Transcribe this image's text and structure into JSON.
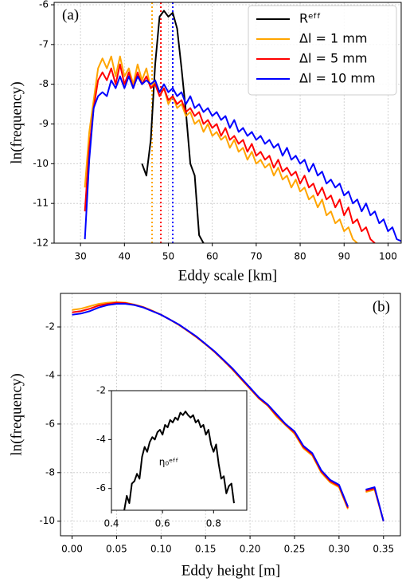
{
  "chart_data": [
    {
      "type": "line",
      "annotations": [
        "(a)"
      ],
      "x_label": "Eddy scale [km]",
      "y_label": "ln(frequency)",
      "xlim": [
        24,
        103
      ],
      "ylim": [
        -12,
        -5.94
      ],
      "xticks": [
        30,
        40,
        50,
        60,
        70,
        80,
        90,
        100
      ],
      "yticks": [
        -12,
        -11,
        -10,
        -9,
        -8,
        -7,
        -6
      ],
      "grid": true,
      "legend": "upper right",
      "x": [
        31,
        32,
        33,
        34,
        35,
        36,
        37,
        38,
        39,
        40,
        41,
        42,
        43,
        44,
        45,
        46,
        47,
        48,
        49,
        50,
        51,
        52,
        53,
        54,
        55,
        56,
        57,
        58,
        59,
        60,
        61,
        62,
        63,
        64,
        65,
        66,
        67,
        68,
        69,
        70,
        71,
        72,
        73,
        74,
        75,
        76,
        77,
        78,
        79,
        80,
        81,
        82,
        83,
        84,
        85,
        86,
        87,
        88,
        89,
        90,
        91,
        92,
        93,
        94,
        95,
        96,
        97,
        98,
        99,
        100,
        101,
        102,
        103
      ],
      "series": [
        {
          "name": "Rᵉᶠᶠ",
          "color": "#000000",
          "values": [
            null,
            null,
            null,
            null,
            null,
            null,
            null,
            null,
            null,
            null,
            null,
            null,
            null,
            -10.0,
            -10.3,
            -9.4,
            -7.5,
            -6.3,
            -6.15,
            -6.3,
            -6.2,
            -6.6,
            -7.6,
            -8.7,
            -10.0,
            -10.3,
            -11.8,
            -12.0,
            null,
            null,
            null,
            null,
            null,
            null,
            null,
            null,
            null,
            null,
            null,
            null,
            null,
            null,
            null,
            null,
            null,
            null,
            null,
            null,
            null,
            null,
            null,
            null,
            null,
            null,
            null,
            null,
            null,
            null,
            null,
            null,
            null,
            null,
            null,
            null,
            null,
            null,
            null,
            null,
            null,
            null,
            null,
            null,
            null
          ]
        },
        {
          "name": "Δl = 1 mm",
          "color": "#ffa500",
          "values": [
            -10.6,
            -9.2,
            -8.4,
            -7.6,
            -7.35,
            -7.6,
            -7.3,
            -7.8,
            -7.3,
            -7.8,
            -7.6,
            -8.0,
            -7.5,
            -7.9,
            -7.6,
            -8.1,
            -7.9,
            -8.3,
            -8.1,
            -8.5,
            -8.3,
            -8.6,
            -8.5,
            -8.8,
            -8.7,
            -9.0,
            -8.9,
            -9.2,
            -9.0,
            -9.3,
            -9.2,
            -9.4,
            -9.3,
            -9.6,
            -9.4,
            -9.7,
            -9.6,
            -9.9,
            -9.7,
            -10.0,
            -9.9,
            -10.1,
            -10.0,
            -10.3,
            -10.1,
            -10.4,
            -10.3,
            -10.6,
            -10.4,
            -10.7,
            -10.6,
            -10.9,
            -10.8,
            -11.1,
            -10.9,
            -11.3,
            -11.2,
            -11.5,
            -11.4,
            -11.7,
            -11.6,
            -11.9,
            -12.0,
            null,
            null,
            null,
            null,
            null,
            null,
            null,
            null,
            null,
            null
          ]
        },
        {
          "name": "Δl = 5 mm",
          "color": "#ff0000",
          "values": [
            -11.2,
            -9.6,
            -8.6,
            -7.9,
            -7.7,
            -7.9,
            -7.6,
            -8.0,
            -7.5,
            -8.0,
            -7.7,
            -8.1,
            -7.7,
            -8.0,
            -7.8,
            -8.1,
            -8.0,
            -8.3,
            -8.1,
            -8.4,
            -8.3,
            -8.5,
            -8.4,
            -8.7,
            -8.6,
            -8.8,
            -8.7,
            -9.0,
            -8.9,
            -9.1,
            -9.0,
            -9.3,
            -9.1,
            -9.4,
            -9.3,
            -9.5,
            -9.4,
            -9.7,
            -9.5,
            -9.8,
            -9.7,
            -9.9,
            -9.8,
            -10.1,
            -9.9,
            -10.2,
            -10.1,
            -10.3,
            -10.2,
            -10.5,
            -10.3,
            -10.6,
            -10.5,
            -10.8,
            -10.6,
            -10.9,
            -10.8,
            -11.1,
            -10.9,
            -11.3,
            -11.1,
            -11.5,
            -11.4,
            -11.7,
            -11.6,
            -11.9,
            -12.0,
            null,
            null,
            null,
            null,
            null,
            null
          ]
        },
        {
          "name": "Δl = 10 mm",
          "color": "#0000ff",
          "values": [
            -11.9,
            -9.9,
            -8.6,
            -8.3,
            -8.2,
            -8.3,
            -7.9,
            -8.1,
            -7.8,
            -8.1,
            -7.8,
            -8.1,
            -7.8,
            -8.0,
            -7.9,
            -8.0,
            -7.9,
            -8.2,
            -8.0,
            -8.2,
            -8.1,
            -8.3,
            -8.2,
            -8.5,
            -8.3,
            -8.6,
            -8.5,
            -8.7,
            -8.6,
            -8.8,
            -8.7,
            -8.9,
            -8.8,
            -9.1,
            -8.9,
            -9.2,
            -9.1,
            -9.3,
            -9.2,
            -9.4,
            -9.3,
            -9.5,
            -9.4,
            -9.6,
            -9.5,
            -9.8,
            -9.6,
            -9.9,
            -9.8,
            -10.0,
            -9.9,
            -10.2,
            -10.0,
            -10.3,
            -10.2,
            -10.5,
            -10.4,
            -10.6,
            -10.5,
            -10.8,
            -10.7,
            -11.0,
            -10.9,
            -11.2,
            -11.0,
            -11.3,
            -11.2,
            -11.5,
            -11.4,
            -11.7,
            -11.6,
            -11.9,
            -11.95
          ]
        }
      ],
      "reference_lines": [
        {
          "x": 46.3,
          "color": "#ffa500"
        },
        {
          "x": 48.3,
          "color": "#ff0000"
        },
        {
          "x": 51.0,
          "color": "#0000ff"
        }
      ]
    },
    {
      "type": "line",
      "annotations": [
        "(b)"
      ],
      "x_label": "Eddy height  [m]",
      "y_label": "ln(frequency)",
      "xlim": [
        -0.013,
        0.369
      ],
      "ylim": [
        -10.6,
        -0.62
      ],
      "xticks": [
        {
          "value": 0,
          "label": "0.00"
        },
        0.05,
        {
          "value": 0.1,
          "label": "0.10"
        },
        0.15,
        {
          "value": 0.2,
          "label": "0.20"
        },
        0.25,
        {
          "value": 0.3,
          "label": "0.30"
        },
        0.35
      ],
      "yticks": [
        -10,
        -8,
        -6,
        -4,
        -2
      ],
      "grid": true,
      "x": [
        0,
        0.01,
        0.02,
        0.03,
        0.04,
        0.05,
        0.06,
        0.07,
        0.08,
        0.09,
        0.1,
        0.11,
        0.12,
        0.13,
        0.14,
        0.15,
        0.16,
        0.17,
        0.18,
        0.19,
        0.2,
        0.21,
        0.22,
        0.23,
        0.24,
        0.25,
        0.26,
        0.27,
        0.28,
        0.29,
        0.3,
        0.31,
        0.32,
        0.33,
        0.34,
        0.35
      ],
      "series": [
        {
          "color": "#ffa500",
          "values": [
            -1.3,
            -1.25,
            -1.15,
            -1.05,
            -1.0,
            -0.98,
            -1.0,
            -1.08,
            -1.18,
            -1.33,
            -1.5,
            -1.7,
            -1.92,
            -2.17,
            -2.43,
            -2.72,
            -3.03,
            -3.38,
            -3.75,
            -4.15,
            -4.55,
            -4.95,
            -5.25,
            -5.7,
            -6.05,
            -6.4,
            -7.0,
            -7.3,
            -8.0,
            -8.4,
            -8.6,
            -9.5,
            null,
            -8.8,
            -8.7,
            -10.0
          ]
        },
        {
          "color": "#ff0000",
          "values": [
            -1.4,
            -1.35,
            -1.25,
            -1.12,
            -1.05,
            -1.0,
            -1.02,
            -1.09,
            -1.19,
            -1.34,
            -1.5,
            -1.7,
            -1.91,
            -2.16,
            -2.42,
            -2.71,
            -3.02,
            -3.37,
            -3.73,
            -4.13,
            -4.53,
            -4.93,
            -5.23,
            -5.65,
            -6.02,
            -6.35,
            -6.95,
            -7.25,
            -7.95,
            -8.35,
            -8.55,
            -9.45,
            null,
            -8.75,
            -8.65,
            -10.0
          ]
        },
        {
          "color": "#0000ff",
          "values": [
            -1.5,
            -1.45,
            -1.35,
            -1.2,
            -1.1,
            -1.05,
            -1.05,
            -1.1,
            -1.2,
            -1.35,
            -1.5,
            -1.7,
            -1.9,
            -2.15,
            -2.4,
            -2.7,
            -3.0,
            -3.35,
            -3.7,
            -4.1,
            -4.5,
            -4.9,
            -5.2,
            -5.6,
            -6.0,
            -6.3,
            -6.9,
            -7.2,
            -7.9,
            -8.3,
            -8.5,
            -9.4,
            null,
            -8.7,
            -8.6,
            -10.0
          ]
        }
      ]
    },
    {
      "type": "line",
      "annotations": [
        "η₀ᵉᶠᶠ"
      ],
      "xlim": [
        0.4,
        0.93
      ],
      "ylim": [
        -6.89,
        -2
      ],
      "xticks": [
        0.4,
        0.6,
        0.8
      ],
      "yticks": [
        -6,
        -4,
        -2
      ],
      "grid": false,
      "x": [
        0.45,
        0.46,
        0.47,
        0.48,
        0.49,
        0.5,
        0.51,
        0.52,
        0.53,
        0.54,
        0.55,
        0.56,
        0.57,
        0.58,
        0.59,
        0.6,
        0.61,
        0.62,
        0.63,
        0.64,
        0.65,
        0.66,
        0.67,
        0.68,
        0.69,
        0.7,
        0.71,
        0.72,
        0.73,
        0.74,
        0.75,
        0.76,
        0.77,
        0.78,
        0.79,
        0.8,
        0.81,
        0.82,
        0.83,
        0.84,
        0.85,
        0.86,
        0.87,
        0.88
      ],
      "series": [
        {
          "color": "#000000",
          "values": [
            -6.9,
            -6.3,
            -6.6,
            -5.8,
            -5.7,
            -5.4,
            -5.6,
            -4.7,
            -4.3,
            -4.5,
            -4.1,
            -3.9,
            -4.0,
            -3.7,
            -3.6,
            -3.8,
            -3.4,
            -3.5,
            -3.2,
            -3.3,
            -3.1,
            -3.2,
            -2.9,
            -3.0,
            -2.85,
            -3.0,
            -3.1,
            -3.0,
            -3.3,
            -3.2,
            -3.5,
            -3.4,
            -3.8,
            -3.6,
            -4.2,
            -4.5,
            -4.2,
            -5.0,
            -5.6,
            -5.5,
            -6.2,
            -5.9,
            -5.8,
            -6.6
          ]
        }
      ]
    }
  ]
}
